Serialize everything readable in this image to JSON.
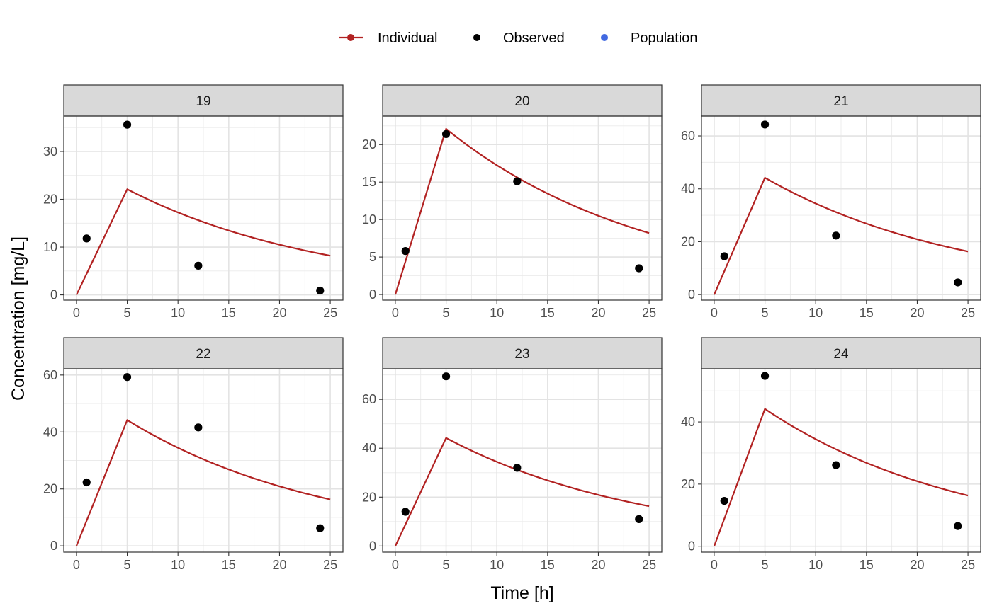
{
  "chart_data": {
    "type": "line",
    "xlabel": "Time [h]",
    "ylabel": "Concentration [mg/L]",
    "grid": true,
    "legend_position": "top",
    "legend": [
      {
        "name": "Individual",
        "kind": "line-point",
        "color": "#B22222"
      },
      {
        "name": "Observed",
        "kind": "point",
        "color": "#000000"
      },
      {
        "name": "Population",
        "kind": "point",
        "color": "#4169E1"
      }
    ],
    "xlim": [
      -1.25,
      26.25
    ],
    "xticks": [
      0,
      5,
      10,
      15,
      20,
      25
    ],
    "xtick_labels": [
      "0",
      "5",
      "10",
      "15",
      "20",
      "25"
    ],
    "panels": [
      {
        "strip": "19",
        "ylim": [
          -1.1,
          37.4
        ],
        "yticks": [
          0,
          10,
          20,
          30
        ],
        "ytick_labels": [
          "0",
          "10",
          "20",
          "30"
        ],
        "observed": {
          "x": [
            1,
            5,
            12,
            24
          ],
          "y": [
            11.8,
            35.6,
            6.1,
            0.9
          ]
        },
        "individual": {
          "x": [
            0,
            5,
            10,
            15,
            20,
            25
          ],
          "y": [
            0,
            22.1,
            17.2,
            13.4,
            10.5,
            8.2
          ]
        }
      },
      {
        "strip": "20",
        "ylim": [
          -0.75,
          23.8
        ],
        "yticks": [
          0,
          5,
          10,
          15,
          20
        ],
        "ytick_labels": [
          "0",
          "5",
          "10",
          "15",
          "20"
        ],
        "observed": {
          "x": [
            1,
            5,
            12,
            24
          ],
          "y": [
            5.8,
            21.4,
            15.1,
            3.5
          ]
        },
        "individual": {
          "x": [
            0,
            5,
            10,
            15,
            20,
            25
          ],
          "y": [
            0,
            22.1,
            17.2,
            13.4,
            10.5,
            8.2
          ]
        }
      },
      {
        "strip": "21",
        "ylim": [
          -2.1,
          67.5
        ],
        "yticks": [
          0,
          20,
          40,
          60
        ],
        "ytick_labels": [
          "0",
          "20",
          "40",
          "60"
        ],
        "observed": {
          "x": [
            1,
            5,
            12,
            24
          ],
          "y": [
            14.5,
            64.3,
            22.3,
            4.6
          ]
        },
        "individual": {
          "x": [
            0,
            5,
            10,
            15,
            20,
            25
          ],
          "y": [
            0,
            44.2,
            34.4,
            26.8,
            20.9,
            16.3
          ]
        }
      },
      {
        "strip": "22",
        "ylim": [
          -2.2,
          62.2
        ],
        "yticks": [
          0,
          20,
          40,
          60
        ],
        "ytick_labels": [
          "0",
          "20",
          "40",
          "60"
        ],
        "observed": {
          "x": [
            1,
            5,
            12,
            24
          ],
          "y": [
            22.3,
            59.3,
            41.6,
            6.2
          ]
        },
        "individual": {
          "x": [
            0,
            5,
            10,
            15,
            20,
            25
          ],
          "y": [
            0,
            44.2,
            34.4,
            26.8,
            20.9,
            16.3
          ]
        }
      },
      {
        "strip": "23",
        "ylim": [
          -2.5,
          72.5
        ],
        "yticks": [
          0,
          20,
          40,
          60
        ],
        "ytick_labels": [
          "0",
          "20",
          "40",
          "60"
        ],
        "observed": {
          "x": [
            1,
            5,
            12,
            24
          ],
          "y": [
            14.0,
            69.4,
            32.0,
            11.0
          ]
        },
        "individual": {
          "x": [
            0,
            5,
            10,
            15,
            20,
            25
          ],
          "y": [
            0,
            44.2,
            34.4,
            26.8,
            20.9,
            16.3
          ]
        }
      },
      {
        "strip": "24",
        "ylim": [
          -1.9,
          57.1
        ],
        "yticks": [
          0,
          20,
          40
        ],
        "ytick_labels": [
          "0",
          "20",
          "40"
        ],
        "observed": {
          "x": [
            1,
            5,
            12,
            24
          ],
          "y": [
            14.6,
            54.8,
            26.1,
            6.5
          ]
        },
        "individual": {
          "x": [
            0,
            5,
            10,
            15,
            20,
            25
          ],
          "y": [
            0,
            44.2,
            34.4,
            26.8,
            20.9,
            16.3
          ]
        }
      }
    ]
  }
}
